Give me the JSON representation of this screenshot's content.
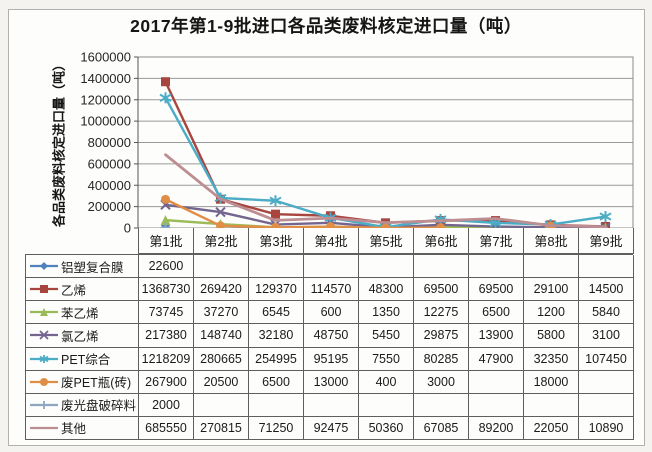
{
  "title": "2017年第1-9批进口各品类废料核定进口量（吨）",
  "y_axis_title": "各品类废料核定进口量（吨）",
  "chart_data": {
    "type": "line",
    "title": "2017年第1-9批进口各品类废料核定进口量（吨）",
    "ylabel": "各品类废料核定进口量（吨）",
    "xlabel": "",
    "categories": [
      "第1批",
      "第2批",
      "第3批",
      "第4批",
      "第5批",
      "第6批",
      "第7批",
      "第8批",
      "第9批"
    ],
    "series": [
      {
        "name": "铝塑复合膜",
        "marker": "diamond",
        "color": "#4F81BD",
        "values": [
          22600,
          null,
          null,
          null,
          null,
          null,
          null,
          null,
          null
        ]
      },
      {
        "name": "乙烯",
        "marker": "square",
        "color": "#A8453F",
        "values": [
          1368730,
          269420,
          129370,
          114570,
          48300,
          69500,
          69500,
          29100,
          14500
        ]
      },
      {
        "name": "苯乙烯",
        "marker": "triangle",
        "color": "#9BBB59",
        "values": [
          73745,
          37270,
          6545,
          600,
          1350,
          12275,
          6500,
          1200,
          5840
        ]
      },
      {
        "name": "氯乙烯",
        "marker": "x",
        "color": "#74658F",
        "values": [
          217380,
          148740,
          32180,
          48750,
          5450,
          29875,
          13900,
          5800,
          3100
        ]
      },
      {
        "name": "PET综合",
        "marker": "asterisk",
        "color": "#4BACC6",
        "values": [
          1218209,
          280665,
          254995,
          95195,
          7550,
          80285,
          47900,
          32350,
          107450
        ]
      },
      {
        "name": "废PET瓶(砖)",
        "marker": "circle",
        "color": "#E08E46",
        "values": [
          267900,
          20500,
          6500,
          13000,
          400,
          3000,
          null,
          18000,
          null
        ]
      },
      {
        "name": "废光盘破碎料",
        "marker": "plus",
        "color": "#8FA6C1",
        "values": [
          2000,
          null,
          null,
          null,
          null,
          null,
          null,
          null,
          null
        ]
      },
      {
        "name": "其他",
        "marker": "none",
        "color": "#BC8D91",
        "values": [
          685550,
          270815,
          71250,
          92475,
          50360,
          67085,
          89200,
          22050,
          10890
        ]
      }
    ],
    "y_ticks": [
      0,
      200000,
      400000,
      600000,
      800000,
      1000000,
      1200000,
      1400000,
      1600000
    ],
    "ylim": [
      0,
      1600000
    ],
    "grid": "horizontal",
    "legend_position": "data-table-left-column"
  },
  "colors": {
    "grid": "#9a9a9a",
    "plot_border": "#8a8a8a",
    "axis": "#555555",
    "table_border": "#5f5f5f",
    "text": "#1f1f1f"
  }
}
